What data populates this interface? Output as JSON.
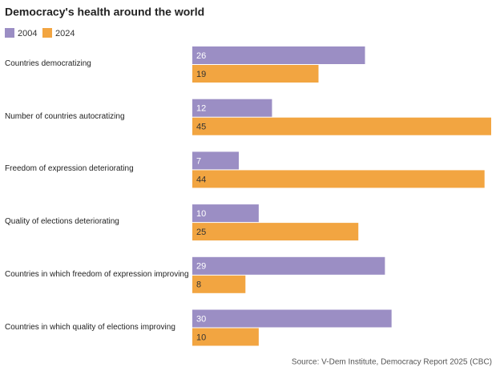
{
  "chart_data": {
    "type": "hbar",
    "title": "Democracy's health around the world",
    "source": "Source: V-Dem Institute, Democracy Report 2025 (CBC)",
    "categories": [
      "Countries democratizing",
      "Number of countries autocratizing",
      "Freedom of expression deteriorating",
      "Quality of elections deteriorating",
      "Countries in which freedom of expression improving",
      "Countries in which quality of elections improving"
    ],
    "series": [
      {
        "name": "2004",
        "color": "#9b8ec4",
        "values": [
          26,
          12,
          7,
          10,
          29,
          30
        ]
      },
      {
        "name": "2024",
        "color": "#f2a541",
        "values": [
          19,
          45,
          44,
          25,
          8,
          10
        ]
      }
    ]
  }
}
